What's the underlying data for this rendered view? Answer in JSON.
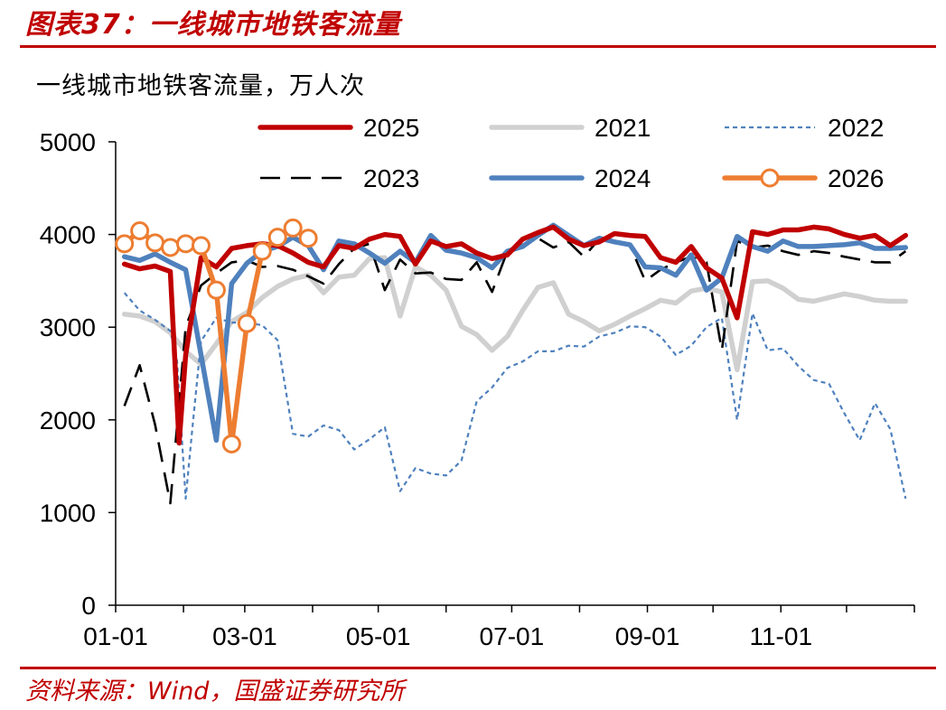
{
  "header": {
    "title": "图表37：一线城市地铁客流量"
  },
  "footer": {
    "source": "资料来源：Wind，国盛证券研究所"
  },
  "chart_data": {
    "type": "line",
    "ylabel": "一线城市地铁客流量，万人次",
    "ylim": [
      0,
      5000
    ],
    "yticks": [
      0,
      1000,
      2000,
      3000,
      4000,
      5000
    ],
    "xlim": [
      1,
      366
    ],
    "xticks": [
      {
        "label": "01-01",
        "day": 1
      },
      {
        "label": "03-01",
        "day": 60
      },
      {
        "label": "05-01",
        "day": 121
      },
      {
        "label": "07-01",
        "day": 182
      },
      {
        "label": "09-01",
        "day": 244
      },
      {
        "label": "11-01",
        "day": 305
      }
    ],
    "legend": {
      "placement": "top",
      "columns": 3
    },
    "series": [
      {
        "name": "2025",
        "color": "#c00000",
        "style": "solid-thick",
        "x": [
          5,
          12,
          19,
          26,
          30,
          33,
          40,
          47,
          54,
          61,
          68,
          75,
          82,
          89,
          96,
          103,
          110,
          117,
          124,
          131,
          138,
          145,
          152,
          159,
          166,
          173,
          180,
          187,
          194,
          201,
          208,
          215,
          222,
          229,
          236,
          243,
          250,
          257,
          264,
          271,
          278,
          285,
          292,
          299,
          306,
          313,
          320,
          327,
          334,
          341,
          348,
          355,
          362
        ],
        "values": [
          3680,
          3630,
          3660,
          3600,
          1750,
          2700,
          3750,
          3650,
          3850,
          3880,
          3900,
          3880,
          3800,
          3700,
          3650,
          3880,
          3850,
          3950,
          4000,
          3980,
          3680,
          3930,
          3870,
          3900,
          3800,
          3740,
          3780,
          3950,
          4020,
          4080,
          3950,
          3880,
          3920,
          4010,
          3990,
          3980,
          3750,
          3700,
          3870,
          3640,
          3530,
          3100,
          4030,
          4000,
          4050,
          4050,
          4080,
          4060,
          4000,
          3960,
          3990,
          3880,
          3990
        ]
      },
      {
        "name": "2021",
        "color": "#d0d0d0",
        "style": "solid-thick",
        "x": [
          5,
          12,
          19,
          26,
          33,
          40,
          47,
          54,
          61,
          68,
          75,
          82,
          89,
          96,
          103,
          110,
          117,
          124,
          131,
          138,
          145,
          152,
          159,
          166,
          173,
          180,
          187,
          194,
          201,
          208,
          215,
          222,
          229,
          236,
          243,
          250,
          257,
          264,
          271,
          278,
          285,
          292,
          299,
          306,
          313,
          320,
          327,
          334,
          341,
          348,
          355,
          362
        ],
        "values": [
          3140,
          3120,
          3060,
          2940,
          2740,
          2600,
          2820,
          3060,
          3160,
          3320,
          3440,
          3520,
          3560,
          3370,
          3540,
          3560,
          3740,
          3750,
          3120,
          3650,
          3560,
          3400,
          3010,
          2920,
          2750,
          2900,
          3180,
          3430,
          3480,
          3140,
          3060,
          2960,
          3030,
          3120,
          3200,
          3290,
          3260,
          3390,
          3420,
          3380,
          2540,
          3490,
          3500,
          3420,
          3300,
          3280,
          3320,
          3360,
          3330,
          3290,
          3280,
          3280
        ]
      },
      {
        "name": "2022",
        "color": "#4f81bd",
        "style": "dotted",
        "x": [
          5,
          12,
          19,
          26,
          29,
          33,
          36,
          40,
          47,
          54,
          61,
          68,
          75,
          82,
          89,
          96,
          103,
          110,
          117,
          124,
          131,
          138,
          145,
          152,
          159,
          166,
          173,
          180,
          187,
          194,
          201,
          208,
          215,
          222,
          229,
          236,
          243,
          250,
          257,
          264,
          271,
          278,
          285,
          292,
          299,
          306,
          313,
          320,
          327,
          334,
          341,
          348,
          355,
          362
        ],
        "values": [
          3370,
          3180,
          3080,
          2960,
          2650,
          1150,
          1900,
          2850,
          3100,
          3050,
          3050,
          3020,
          2860,
          1850,
          1820,
          1940,
          1890,
          1680,
          1790,
          1920,
          1230,
          1480,
          1420,
          1400,
          1560,
          2200,
          2350,
          2560,
          2630,
          2740,
          2740,
          2800,
          2790,
          2900,
          2940,
          3010,
          3000,
          2900,
          2700,
          2800,
          3000,
          3100,
          2000,
          3150,
          2750,
          2770,
          2580,
          2430,
          2390,
          2070,
          1780,
          2180,
          1900,
          1150
        ]
      },
      {
        "name": "2023",
        "color": "#000000",
        "style": "dashed",
        "x": [
          5,
          12,
          19,
          26,
          33,
          40,
          47,
          54,
          61,
          68,
          75,
          82,
          89,
          96,
          103,
          110,
          117,
          124,
          131,
          138,
          145,
          152,
          159,
          166,
          173,
          180,
          187,
          194,
          201,
          208,
          215,
          222,
          229,
          236,
          243,
          250,
          257,
          264,
          271,
          278,
          285,
          292,
          299,
          306,
          313,
          320,
          327,
          334,
          341,
          348,
          355,
          362
        ],
        "values": [
          2150,
          2590,
          1950,
          1100,
          3000,
          3450,
          3580,
          3700,
          3720,
          3650,
          3660,
          3620,
          3550,
          3470,
          3680,
          3850,
          3900,
          3400,
          3730,
          3580,
          3590,
          3520,
          3510,
          3700,
          3380,
          3820,
          3890,
          3960,
          3860,
          3920,
          3760,
          3950,
          3930,
          3880,
          3500,
          3620,
          3700,
          3760,
          3700,
          2750,
          3930,
          3860,
          3880,
          3820,
          3780,
          3820,
          3800,
          3760,
          3730,
          3700,
          3700,
          3820
        ]
      },
      {
        "name": "2024",
        "color": "#4f81bd",
        "style": "solid-thick",
        "x": [
          5,
          12,
          19,
          26,
          33,
          40,
          47,
          54,
          61,
          68,
          75,
          82,
          89,
          96,
          103,
          110,
          117,
          124,
          131,
          138,
          145,
          152,
          159,
          166,
          173,
          180,
          187,
          194,
          201,
          208,
          215,
          222,
          229,
          236,
          243,
          250,
          257,
          264,
          271,
          278,
          285,
          292,
          299,
          306,
          313,
          320,
          327,
          334,
          341,
          348,
          355,
          362
        ],
        "values": [
          3760,
          3720,
          3790,
          3700,
          3620,
          2700,
          1780,
          3470,
          3690,
          3820,
          3870,
          3970,
          3880,
          3620,
          3930,
          3900,
          3800,
          3690,
          3820,
          3700,
          3990,
          3830,
          3800,
          3750,
          3640,
          3820,
          3870,
          3990,
          4100,
          3990,
          3880,
          3960,
          3920,
          3890,
          3650,
          3640,
          3560,
          3780,
          3400,
          3530,
          3980,
          3870,
          3820,
          3930,
          3870,
          3870,
          3880,
          3890,
          3910,
          3850,
          3850,
          3860
        ]
      },
      {
        "name": "2026",
        "color": "#ed7d31",
        "style": "solid-markers",
        "x": [
          5,
          12,
          19,
          26,
          33,
          40,
          47,
          54,
          61,
          68,
          75,
          82,
          89
        ],
        "values": [
          3900,
          4040,
          3910,
          3860,
          3900,
          3880,
          3400,
          1740,
          3040,
          3820,
          3970,
          4070,
          3960
        ]
      }
    ]
  }
}
